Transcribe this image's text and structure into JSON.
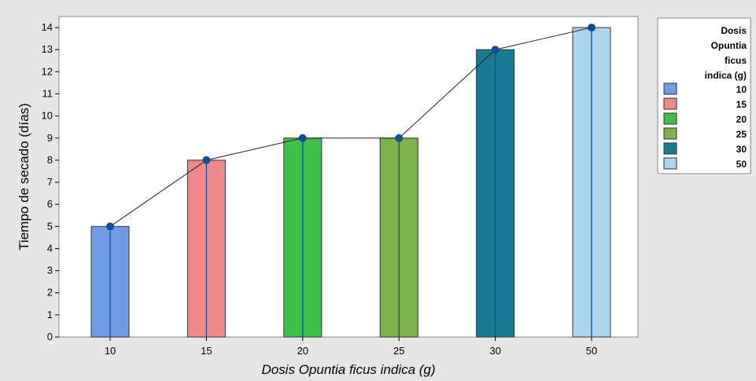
{
  "chart_data": {
    "type": "bar",
    "categories": [
      "10",
      "15",
      "20",
      "25",
      "30",
      "50"
    ],
    "values": [
      5,
      8,
      9,
      9,
      13,
      14
    ],
    "colors": [
      "#6f9be2",
      "#f08a8a",
      "#3dc14b",
      "#7bb24b",
      "#1a7a94",
      "#acd4ec"
    ],
    "connect_line": true,
    "marker_color": "#0d4f9a",
    "xlabel": "Dosis Opuntia ficus indica (g)",
    "ylabel": "Tiempo de secado (días)",
    "ylim": [
      0,
      14.5
    ],
    "yticks": [
      0,
      1,
      2,
      3,
      4,
      5,
      6,
      7,
      8,
      9,
      10,
      11,
      12,
      13,
      14
    ],
    "grid": false,
    "legend": {
      "title_lines": [
        "Dosis",
        "Opuntia",
        "ficus",
        "indica (g)"
      ],
      "position": "right",
      "entries": [
        "10",
        "15",
        "20",
        "25",
        "30",
        "50"
      ]
    }
  }
}
